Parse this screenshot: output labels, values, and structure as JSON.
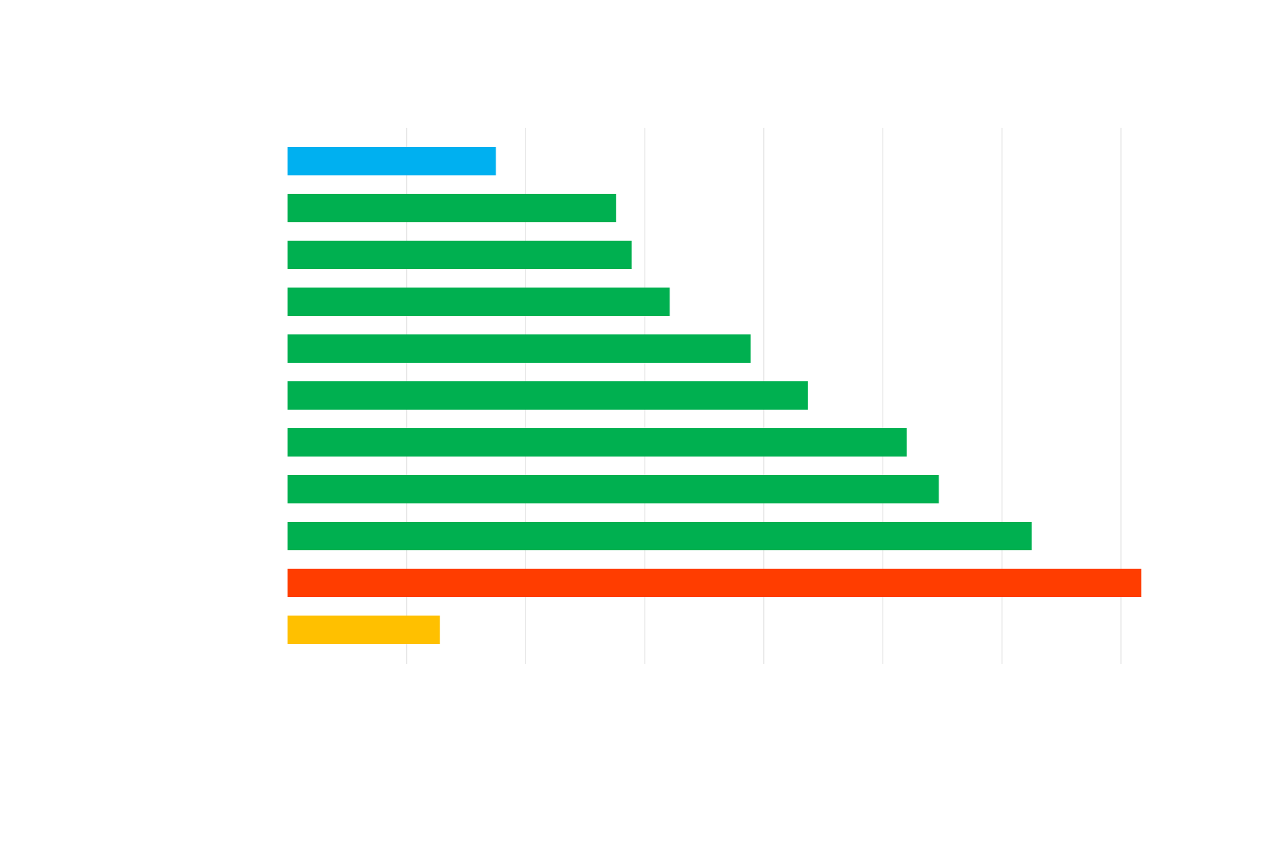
{
  "chart_data": {
    "type": "bar",
    "orientation": "horizontal",
    "title": "",
    "xlabel": "",
    "ylabel": "",
    "xlim": [
      0,
      7.2
    ],
    "x_gridlines": [
      1,
      2,
      3,
      4,
      5,
      6,
      7
    ],
    "grid": "vertical",
    "legend": "none",
    "categories": [
      "",
      "",
      "",
      "",
      "",
      "",
      "",
      "",
      "",
      "",
      ""
    ],
    "values": [
      1.75,
      2.76,
      2.89,
      3.21,
      3.89,
      4.37,
      5.2,
      5.47,
      6.25,
      7.17,
      1.28
    ],
    "colors": [
      "#00b0f0",
      "#00b050",
      "#00b050",
      "#00b050",
      "#00b050",
      "#00b050",
      "#00b050",
      "#00b050",
      "#00b050",
      "#ff3d00",
      "#ffc000"
    ]
  }
}
